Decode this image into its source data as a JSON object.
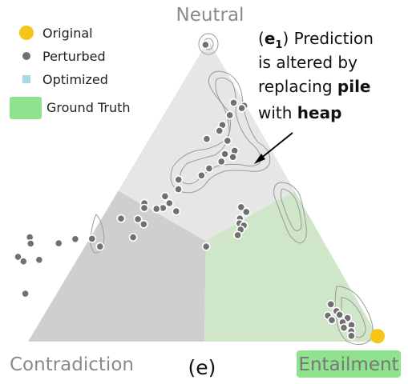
{
  "chart_data": {
    "type": "scatter",
    "subtype": "ternary",
    "caption": "(e)",
    "vertices": {
      "top": "Neutral",
      "left": "Contradiction",
      "right": "Entailment"
    },
    "ground_truth_vertex": "Entailment",
    "regions": [
      {
        "class": "Neutral",
        "color": "#e6e6e6"
      },
      {
        "class": "Contradiction",
        "color": "#cfcfcf"
      },
      {
        "class": "Entailment",
        "color": "#cfe6c9"
      }
    ],
    "legend": {
      "position": "top-left",
      "items": [
        {
          "label": "Original",
          "color": "#f5c518",
          "marker": "circle"
        },
        {
          "label": "Perturbed",
          "color": "#707070",
          "marker": "circle"
        },
        {
          "label": "Optimized",
          "color": "#a8d8ea",
          "marker": "square"
        },
        {
          "label": "Ground Truth",
          "color": "#8fe38f",
          "marker": "rect"
        }
      ]
    },
    "annotation": {
      "tag_open": "(",
      "tag_bold": "e",
      "tag_sub": "1",
      "tag_close": ")",
      "line1_rest": " Prediction",
      "line2": "is altered by",
      "line3_pre": "replacing ",
      "line3_bold": "pile",
      "line4_pre": "with ",
      "line4_bold": "heap"
    },
    "points_note": "barycentric probabilities [P(Entailment), P(Neutral), P(Contradiction)]",
    "original": [
      [
        0.982,
        0.018,
        0.0
      ]
    ],
    "perturbed": [
      [
        0.0,
        0.984,
        0.016
      ],
      [
        0.178,
        0.792,
        0.03
      ],
      [
        0.213,
        0.782,
        0.005
      ],
      [
        0.21,
        0.774,
        0.016
      ],
      [
        0.188,
        0.751,
        0.061
      ],
      [
        0.184,
        0.718,
        0.098
      ],
      [
        0.185,
        0.699,
        0.116
      ],
      [
        0.163,
        0.672,
        0.165
      ],
      [
        0.225,
        0.666,
        0.109
      ],
      [
        0.262,
        0.633,
        0.105
      ],
      [
        0.24,
        0.622,
        0.138
      ],
      [
        0.268,
        0.612,
        0.12
      ],
      [
        0.243,
        0.597,
        0.16
      ],
      [
        0.22,
        0.574,
        0.206
      ],
      [
        0.21,
        0.551,
        0.239
      ],
      [
        0.152,
        0.537,
        0.311
      ],
      [
        0.168,
        0.505,
        0.327
      ],
      [
        0.142,
        0.482,
        0.376
      ],
      [
        0.166,
        0.459,
        0.375
      ],
      [
        0.156,
        0.443,
        0.401
      ],
      [
        0.139,
        0.44,
        0.421
      ],
      [
        0.095,
        0.459,
        0.446
      ],
      [
        0.103,
        0.443,
        0.454
      ],
      [
        0.104,
        0.406,
        0.49
      ],
      [
        0.055,
        0.408,
        0.537
      ],
      [
        0.129,
        0.389,
        0.482
      ],
      [
        0.199,
        0.432,
        0.369
      ],
      [
        0.121,
        0.346,
        0.533
      ],
      [
        0.043,
        0.315,
        0.642
      ],
      [
        0.376,
        0.446,
        0.178
      ],
      [
        0.399,
        0.43,
        0.171
      ],
      [
        0.392,
        0.408,
        0.2
      ],
      [
        0.399,
        0.392,
        0.209
      ],
      [
        0.415,
        0.385,
        0.2
      ],
      [
        0.413,
        0.371,
        0.216
      ],
      [
        0.414,
        0.353,
        0.233
      ],
      [
        0.344,
        0.315,
        0.341
      ],
      [
        -0.172,
        0.346,
        0.826
      ],
      [
        -0.159,
        0.325,
        0.834
      ],
      [
        -0.172,
        0.281,
        0.891
      ],
      [
        -0.149,
        0.266,
        0.883
      ],
      [
        -0.08,
        0.326,
        0.754
      ],
      [
        -0.04,
        0.34,
        0.7
      ],
      [
        -0.107,
        0.271,
        0.836
      ],
      [
        0.007,
        0.341,
        0.652
      ],
      [
        -0.089,
        0.159,
        0.93
      ],
      [
        -0.3,
        0.0,
        1.0
      ],
      [
        0.795,
        0.124,
        0.081
      ],
      [
        0.823,
        0.101,
        0.076
      ],
      [
        0.806,
        0.086,
        0.108
      ],
      [
        0.838,
        0.089,
        0.073
      ],
      [
        0.825,
        0.071,
        0.104
      ],
      [
        0.866,
        0.078,
        0.056
      ],
      [
        0.859,
        0.064,
        0.077
      ],
      [
        0.872,
        0.046,
        0.082
      ],
      [
        0.889,
        0.055,
        0.056
      ],
      [
        0.899,
        0.034,
        0.067
      ],
      [
        0.907,
        0.019,
        0.074
      ]
    ],
    "optimized": []
  }
}
